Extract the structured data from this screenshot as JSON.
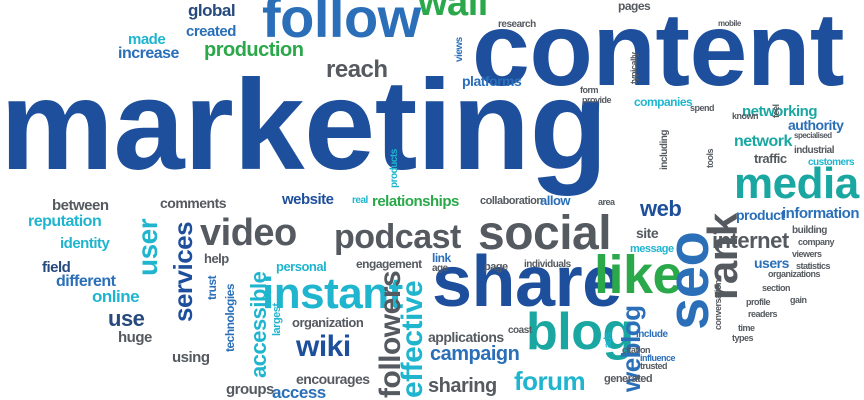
{
  "palette": {
    "navy": "#1e4f9c",
    "blue": "#2a6fb8",
    "gray": "#555a60",
    "green": "#2aa84a",
    "cyan": "#1fb5cf",
    "teal": "#1aa7a2",
    "dark": "#274a7e"
  },
  "words": [
    {
      "id": "marketing",
      "text": "marketing",
      "color": "navy"
    },
    {
      "id": "content",
      "text": "content",
      "color": "navy"
    },
    {
      "id": "follow",
      "text": "follow",
      "color": "blue"
    },
    {
      "id": "wall",
      "text": "wall",
      "color": "green"
    },
    {
      "id": "global",
      "text": "global",
      "color": "dark"
    },
    {
      "id": "made",
      "text": "made",
      "color": "cyan"
    },
    {
      "id": "increase",
      "text": "increase",
      "color": "blue"
    },
    {
      "id": "created",
      "text": "created",
      "color": "blue"
    },
    {
      "id": "production",
      "text": "production",
      "color": "green"
    },
    {
      "id": "reach",
      "text": "reach",
      "color": "gray"
    },
    {
      "id": "research",
      "text": "research",
      "color": "gray"
    },
    {
      "id": "platforms",
      "text": "platforms",
      "color": "blue"
    },
    {
      "id": "views",
      "text": "views",
      "color": "blue"
    },
    {
      "id": "pages",
      "text": "pages",
      "color": "gray"
    },
    {
      "id": "companies",
      "text": "companies",
      "color": "cyan"
    },
    {
      "id": "networking",
      "text": "networking",
      "color": "teal"
    },
    {
      "id": "authority",
      "text": "authority",
      "color": "blue"
    },
    {
      "id": "network",
      "text": "network",
      "color": "teal"
    },
    {
      "id": "traffic",
      "text": "traffic",
      "color": "gray"
    },
    {
      "id": "media",
      "text": "media",
      "color": "teal"
    },
    {
      "id": "product",
      "text": "product",
      "color": "blue"
    },
    {
      "id": "information",
      "text": "information",
      "color": "blue"
    },
    {
      "id": "social",
      "text": "social",
      "color": "gray"
    },
    {
      "id": "video",
      "text": "video",
      "color": "gray"
    },
    {
      "id": "podcast",
      "text": "podcast",
      "color": "gray"
    },
    {
      "id": "comments",
      "text": "comments",
      "color": "gray"
    },
    {
      "id": "between",
      "text": "between",
      "color": "gray"
    },
    {
      "id": "reputation",
      "text": "reputation",
      "color": "cyan"
    },
    {
      "id": "identity",
      "text": "identity",
      "color": "cyan"
    },
    {
      "id": "field",
      "text": "field",
      "color": "dark"
    },
    {
      "id": "different",
      "text": "different",
      "color": "blue"
    },
    {
      "id": "online",
      "text": "online",
      "color": "cyan"
    },
    {
      "id": "use",
      "text": "use",
      "color": "dark"
    },
    {
      "id": "huge",
      "text": "huge",
      "color": "gray"
    },
    {
      "id": "user",
      "text": "user",
      "color": "cyan"
    },
    {
      "id": "services",
      "text": "services",
      "color": "navy"
    },
    {
      "id": "help",
      "text": "help",
      "color": "gray"
    },
    {
      "id": "website",
      "text": "website",
      "color": "navy"
    },
    {
      "id": "real",
      "text": "real",
      "color": "cyan"
    },
    {
      "id": "relationships",
      "text": "relationships",
      "color": "green"
    },
    {
      "id": "collaboration",
      "text": "collaboration",
      "color": "gray"
    },
    {
      "id": "allow",
      "text": "allow",
      "color": "blue"
    },
    {
      "id": "web",
      "text": "web",
      "color": "navy"
    },
    {
      "id": "internet",
      "text": "internet",
      "color": "gray"
    },
    {
      "id": "site",
      "text": "site",
      "color": "gray"
    },
    {
      "id": "message",
      "text": "message",
      "color": "cyan"
    },
    {
      "id": "share",
      "text": "share",
      "color": "navy"
    },
    {
      "id": "like",
      "text": "like",
      "color": "green"
    },
    {
      "id": "seo",
      "text": "seo",
      "color": "blue"
    },
    {
      "id": "rank",
      "text": "rank",
      "color": "gray"
    },
    {
      "id": "users",
      "text": "users",
      "color": "blue"
    },
    {
      "id": "instant",
      "text": "instant",
      "color": "cyan"
    },
    {
      "id": "accessible",
      "text": "accessible",
      "color": "cyan"
    },
    {
      "id": "personal",
      "text": "personal",
      "color": "cyan"
    },
    {
      "id": "engagement",
      "text": "engagement",
      "color": "gray"
    },
    {
      "id": "link",
      "text": "link",
      "color": "blue"
    },
    {
      "id": "age",
      "text": "age",
      "color": "gray"
    },
    {
      "id": "page",
      "text": "page",
      "color": "gray"
    },
    {
      "id": "individuals",
      "text": "individuals",
      "color": "gray"
    },
    {
      "id": "organization",
      "text": "organization",
      "color": "gray"
    },
    {
      "id": "wiki",
      "text": "wiki",
      "color": "navy"
    },
    {
      "id": "blog",
      "text": "blog",
      "color": "teal"
    },
    {
      "id": "applications",
      "text": "applications",
      "color": "gray"
    },
    {
      "id": "campaign",
      "text": "campaign",
      "color": "blue"
    },
    {
      "id": "coast",
      "text": "coast",
      "color": "gray"
    },
    {
      "id": "sharing",
      "text": "sharing",
      "color": "gray"
    },
    {
      "id": "forum",
      "text": "forum",
      "color": "cyan"
    },
    {
      "id": "using",
      "text": "using",
      "color": "gray"
    },
    {
      "id": "groups",
      "text": "groups",
      "color": "gray"
    },
    {
      "id": "access",
      "text": "access",
      "color": "blue"
    },
    {
      "id": "encourages",
      "text": "encourages",
      "color": "gray"
    },
    {
      "id": "trust",
      "text": "trust",
      "color": "blue"
    },
    {
      "id": "technologies",
      "text": "technologies",
      "color": "blue"
    },
    {
      "id": "largest",
      "text": "largest",
      "color": "cyan"
    },
    {
      "id": "followers",
      "text": "followers",
      "color": "gray"
    },
    {
      "id": "effective",
      "text": "effective",
      "color": "cyan"
    },
    {
      "id": "weblog",
      "text": "weblog",
      "color": "blue"
    },
    {
      "id": "include",
      "text": "include",
      "color": "blue"
    },
    {
      "id": "generated",
      "text": "generated",
      "color": "gray"
    },
    {
      "id": "products",
      "text": "products",
      "color": "cyan"
    },
    {
      "id": "form",
      "text": "form",
      "color": "gray"
    },
    {
      "id": "provide",
      "text": "provide",
      "color": "gray"
    },
    {
      "id": "spend",
      "text": "spend",
      "color": "gray"
    },
    {
      "id": "mobile",
      "text": "mobile",
      "color": "gray"
    },
    {
      "id": "customers",
      "text": "customers",
      "color": "cyan"
    },
    {
      "id": "building",
      "text": "building",
      "color": "gray"
    },
    {
      "id": "company",
      "text": "company",
      "color": "gray"
    },
    {
      "id": "viewers",
      "text": "viewers",
      "color": "gray"
    },
    {
      "id": "area",
      "text": "area",
      "color": "gray"
    },
    {
      "id": "citation",
      "text": "citation",
      "color": "gray"
    },
    {
      "id": "influence",
      "text": "influence",
      "color": "blue"
    },
    {
      "id": "trusted",
      "text": "trusted",
      "color": "gray"
    },
    {
      "id": "ads",
      "text": "ads",
      "color": "cyan"
    },
    {
      "id": "profile",
      "text": "profile",
      "color": "gray"
    },
    {
      "id": "readers",
      "text": "readers",
      "color": "gray"
    },
    {
      "id": "time",
      "text": "time",
      "color": "gray"
    },
    {
      "id": "types",
      "text": "types",
      "color": "gray"
    },
    {
      "id": "industrial",
      "text": "industrial",
      "color": "gray"
    },
    {
      "id": "specialised",
      "text": "specialised",
      "color": "gray"
    },
    {
      "id": "typically",
      "text": "typically",
      "color": "gray"
    },
    {
      "id": "including",
      "text": "including",
      "color": "gray"
    },
    {
      "id": "tools",
      "text": "tools",
      "color": "gray"
    },
    {
      "id": "feel",
      "text": "feel",
      "color": "gray"
    },
    {
      "id": "known",
      "text": "known",
      "color": "gray"
    },
    {
      "id": "organizations",
      "text": "organizations",
      "color": "gray"
    },
    {
      "id": "statistics",
      "text": "statistics",
      "color": "gray"
    },
    {
      "id": "section",
      "text": "section",
      "color": "gray"
    },
    {
      "id": "gain",
      "text": "gain",
      "color": "gray"
    },
    {
      "id": "conversations",
      "text": "conversations",
      "color": "gray"
    }
  ]
}
